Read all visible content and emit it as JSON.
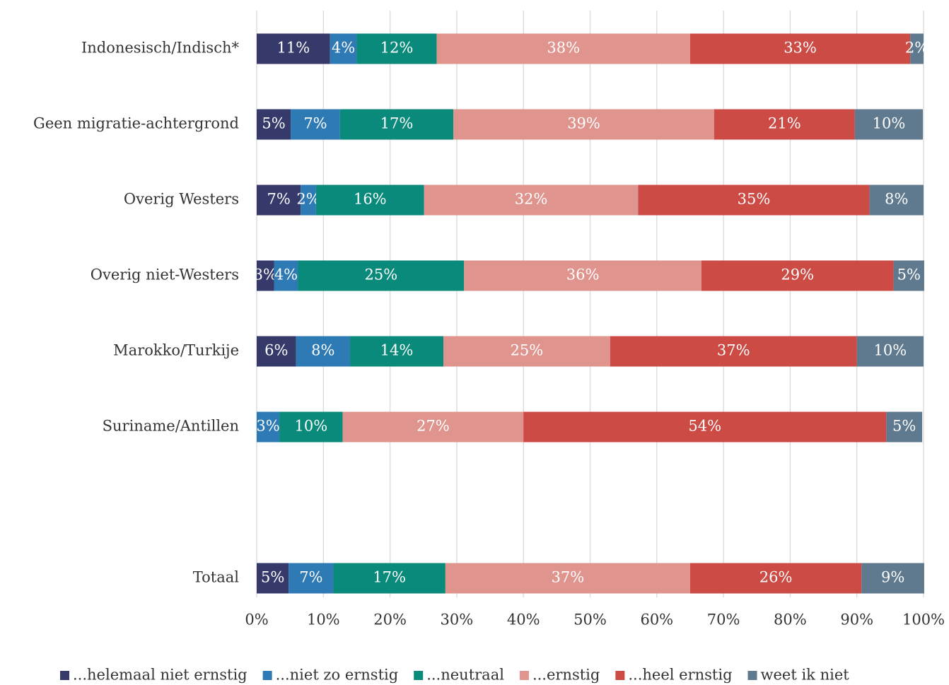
{
  "chart_data": {
    "type": "bar",
    "orientation": "horizontal",
    "stacked": true,
    "categories": [
      "Indonesisch/Indisch*",
      "Geen migratie-achtergrond",
      "Overig Westers",
      "Overig niet-Westers",
      "Marokko/Turkije",
      "Suriname/Antillen",
      null,
      "Totaal"
    ],
    "series": [
      {
        "name": "...helemaal niet ernstig",
        "color": "#353a6b",
        "values": [
          11,
          5.1,
          6.6,
          2.6,
          5.9,
          null,
          null,
          4.8
        ],
        "value_labels": [
          "11%",
          "5%",
          "7%",
          "3%",
          "6%",
          null,
          null,
          "5%"
        ]
      },
      {
        "name": "...niet zo ernstig",
        "color": "#2e7ab5",
        "values": [
          4,
          7.4,
          2.3,
          3.6,
          8.1,
          3.4,
          null,
          6.7
        ],
        "value_labels": [
          "4%",
          "7%",
          "2%",
          "4%",
          "8%",
          "3%",
          null,
          "7%"
        ]
      },
      {
        "name": "...neutraal",
        "color": "#0a8a7a",
        "values": [
          12,
          17,
          16.2,
          24.9,
          14,
          9.5,
          null,
          16.8
        ],
        "value_labels": [
          "12%",
          "17%",
          "16%",
          "25%",
          "14%",
          "10%",
          null,
          "17%"
        ]
      },
      {
        "name": "...ernstig",
        "color": "#e0948e",
        "values": [
          38,
          39.1,
          32.1,
          35.6,
          25,
          27.1,
          null,
          36.7
        ],
        "value_labels": [
          "38%",
          "39%",
          "32%",
          "36%",
          "25%",
          "27%",
          null,
          "37%"
        ]
      },
      {
        "name": "...heel ernstig",
        "color": "#cc4b45",
        "values": [
          33,
          21.1,
          34.7,
          28.8,
          37,
          54.4,
          null,
          25.7
        ],
        "value_labels": [
          "33%",
          "21%",
          "35%",
          "29%",
          "37%",
          "54%",
          null,
          "26%"
        ]
      },
      {
        "name": "weet ik niet",
        "color": "#5f7a8f",
        "values": [
          2,
          10.2,
          8.1,
          4.6,
          10,
          5.4,
          null,
          9.4
        ],
        "value_labels": [
          "2%",
          "10%",
          "8%",
          "5%",
          "10%",
          "5%",
          null,
          "9%"
        ]
      }
    ],
    "xlim": [
      0,
      100
    ],
    "xticks": [
      {
        "value": 0,
        "label": "0%"
      },
      {
        "value": 10,
        "label": "10%"
      },
      {
        "value": 20,
        "label": "20%"
      },
      {
        "value": 30,
        "label": "30%"
      },
      {
        "value": 40,
        "label": "40%"
      },
      {
        "value": 50,
        "label": "50%"
      },
      {
        "value": 60,
        "label": "60%"
      },
      {
        "value": 70,
        "label": "70%"
      },
      {
        "value": 80,
        "label": "80%"
      },
      {
        "value": 90,
        "label": "90%"
      },
      {
        "value": 100,
        "label": "100%"
      }
    ],
    "grid": true,
    "legend": "bottom"
  }
}
